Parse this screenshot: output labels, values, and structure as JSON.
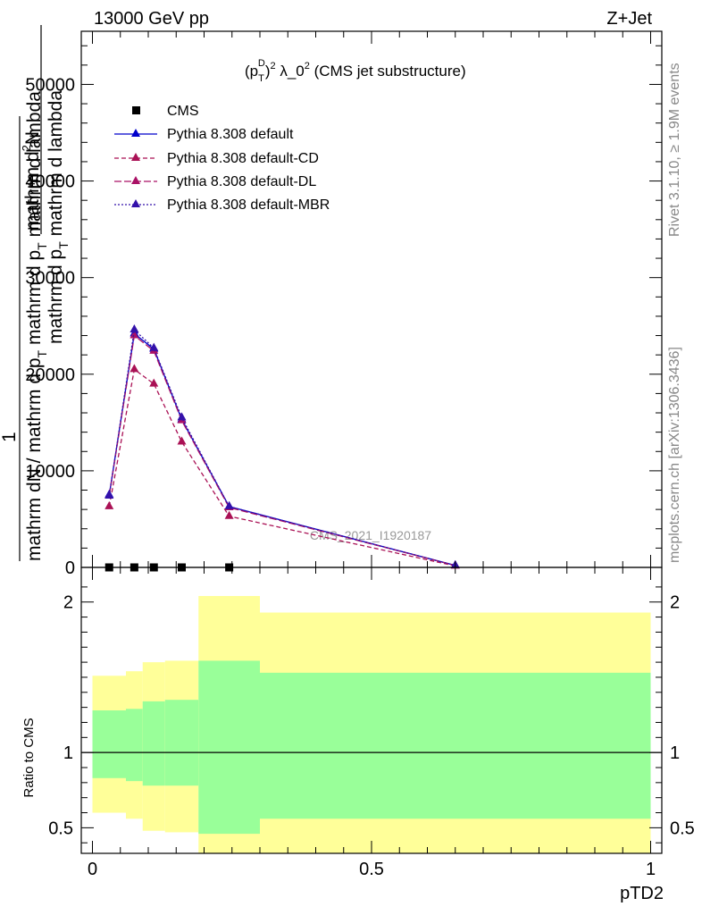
{
  "header": {
    "energy": "13000 GeV pp",
    "process": "Z+Jet"
  },
  "side_labels": {
    "rivet": "Rivet 3.1.10, ≥ 1.9M events",
    "mcplots": "mcplots.cern.ch [arXiv:1306.3436]"
  },
  "legend": {
    "items": [
      "CMS",
      "Pythia 8.308 default",
      "Pythia 8.308 default-CD",
      "Pythia 8.308 default-DL",
      "Pythia 8.308 default-MBR"
    ]
  },
  "colors": {
    "data": "#000000",
    "default": "#0000cc",
    "cd": "#aa1155",
    "dl": "#aa1166",
    "mbr": "#3311aa",
    "band_outer": "#ffff99",
    "band_inner": "#99ff99"
  },
  "chart_data": [
    {
      "type": "line",
      "title": "(p_T^D)^2 λ_0^2 (CMS jet substructure)",
      "title_parts": {
        "open": "(p",
        "sub1": "T",
        "sup1": "D",
        "close": ")",
        "sup2": "2",
        "lambda": " λ_0",
        "sup3": "2",
        "rest": " (CMS jet substructure)"
      },
      "ylabel_lines": [
        "mathrm d²N",
        "mathrm d p_T mathrm d lambda",
        "1",
        "mathrm dN / mathrm d p_T mathrm d p_T mathrm d lambda"
      ],
      "ylabel_parts": {
        "line1_top": "mathrm d",
        "line1_sup": "2",
        "line1_end": "N",
        "line2_a": "mathrm d p",
        "line2_sub": "T",
        "line2_b": " mathrm d lambda",
        "line3": "1",
        "line4_a": "mathrm dN / mathrm d p",
        "line4_sub": "T",
        "line4_b": " mathrm d p",
        "line4_sub2": "T",
        "line4_c": " mathrm d lambda"
      },
      "watermark": "CMS_2021_I1920187",
      "xlim": [
        -0.02,
        1.02
      ],
      "ylim": [
        0,
        55500
      ],
      "yticks": [
        0,
        10000,
        20000,
        30000,
        40000,
        50000
      ],
      "ytick_labels": [
        "0",
        "10000",
        "20000",
        "30000",
        "40000",
        "50000"
      ],
      "series": [
        {
          "name": "CMS",
          "x": [
            0.03,
            0.075,
            0.11,
            0.16,
            0.245
          ],
          "y": [
            0,
            0,
            0,
            0,
            0
          ]
        },
        {
          "name": "Pythia 8.308 default",
          "x": [
            0.03,
            0.075,
            0.11,
            0.16,
            0.245,
            0.65
          ],
          "y": [
            7500,
            24200,
            22600,
            15300,
            6300,
            200
          ]
        },
        {
          "name": "Pythia 8.308 default-CD",
          "x": [
            0.03,
            0.075,
            0.11,
            0.16,
            0.245,
            0.65
          ],
          "y": [
            6300,
            20500,
            19000,
            13000,
            5300,
            150
          ]
        },
        {
          "name": "Pythia 8.308 default-DL",
          "x": [
            0.03,
            0.075,
            0.11,
            0.16,
            0.245,
            0.65
          ],
          "y": [
            7400,
            24000,
            22400,
            15200,
            6200,
            200
          ]
        },
        {
          "name": "Pythia 8.308 default-MBR",
          "x": [
            0.03,
            0.075,
            0.11,
            0.16,
            0.245,
            0.65
          ],
          "y": [
            7400,
            24600,
            22700,
            15500,
            6300,
            200
          ]
        }
      ]
    },
    {
      "type": "area",
      "ylabel": "Ratio to CMS",
      "xlabel": "pTD2",
      "xlim": [
        -0.02,
        1.02
      ],
      "ylim": [
        0.33,
        2.23
      ],
      "xticks": [
        0,
        0.5,
        1
      ],
      "xtick_labels": [
        "0",
        "0.5",
        "1"
      ],
      "yticks": [
        0.5,
        1,
        2
      ],
      "ytick_labels": [
        "0.5",
        "1",
        "2"
      ],
      "bins": [
        {
          "x0": 0.0,
          "x1": 0.06,
          "outer": [
            0.6,
            1.51
          ],
          "inner": [
            0.83,
            1.28
          ]
        },
        {
          "x0": 0.06,
          "x1": 0.09,
          "outer": [
            0.56,
            1.54
          ],
          "inner": [
            0.81,
            1.29
          ]
        },
        {
          "x0": 0.09,
          "x1": 0.13,
          "outer": [
            0.48,
            1.6
          ],
          "inner": [
            0.78,
            1.34
          ]
        },
        {
          "x0": 0.13,
          "x1": 0.19,
          "outer": [
            0.47,
            1.61
          ],
          "inner": [
            0.78,
            1.35
          ]
        },
        {
          "x0": 0.19,
          "x1": 0.3,
          "outer": [
            0.33,
            2.04
          ],
          "inner": [
            0.46,
            1.61
          ]
        },
        {
          "x0": 0.3,
          "x1": 1.0,
          "outer": [
            0.33,
            1.93
          ],
          "inner": [
            0.56,
            1.53
          ]
        }
      ]
    }
  ]
}
